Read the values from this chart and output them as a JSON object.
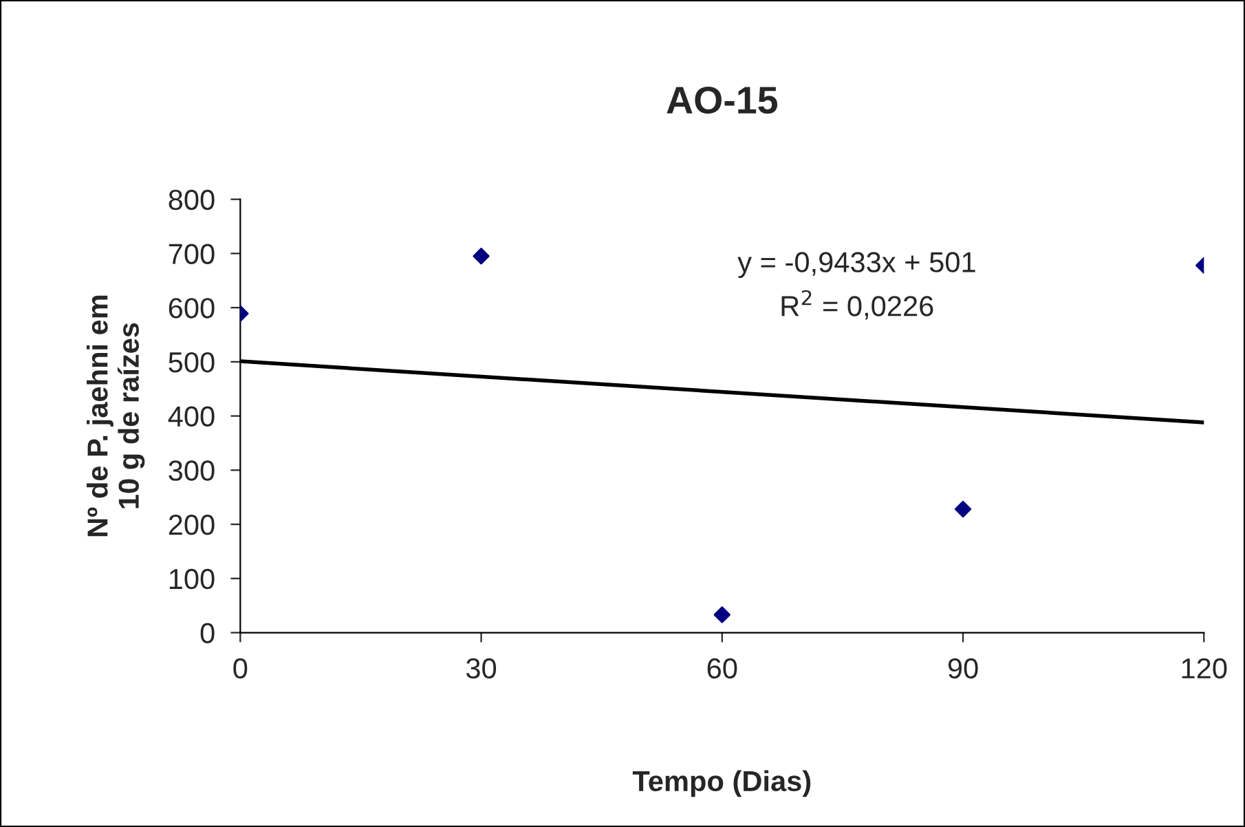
{
  "chart_data": {
    "type": "scatter",
    "title": "AO-15",
    "xlabel": "Tempo (Dias)",
    "ylabel": "Nº de P. jaehni em\n10 g de raízes",
    "x": [
      0,
      30,
      60,
      90,
      120
    ],
    "series": [
      {
        "color": "#000080",
        "marker": "diamond",
        "values": [
          589,
          695,
          33,
          228,
          678
        ]
      },
      {
        "type": "line",
        "color": "#000000",
        "marker": "none",
        "x": [
          0,
          120
        ],
        "values": [
          501,
          388
        ]
      }
    ],
    "grid": false,
    "legend": false,
    "xlim": [
      0,
      120
    ],
    "xticks": [
      0,
      30,
      60,
      90,
      120
    ],
    "ylim": [
      0,
      800
    ],
    "yticks": [
      0,
      100,
      200,
      300,
      400,
      500,
      600,
      700,
      800
    ],
    "annotations": [
      "y = -0,9433x + 501\nR$^{2}$ = 0,0226"
    ]
  }
}
